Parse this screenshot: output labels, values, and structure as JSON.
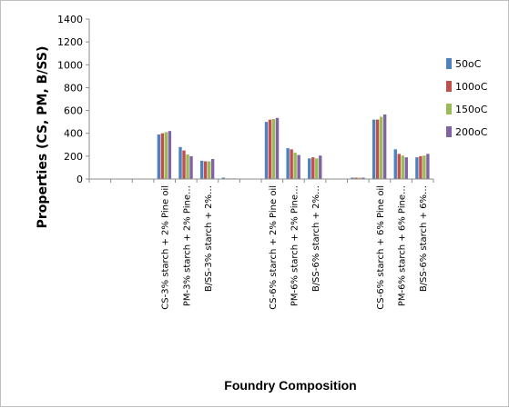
{
  "chart_data": {
    "type": "bar",
    "xlabel": "Foundry Composition",
    "ylabel": "Properties (CS, PM, B/SS)",
    "ylim": [
      0,
      1400
    ],
    "yticks": [
      0,
      200,
      400,
      600,
      800,
      1000,
      1200,
      1400
    ],
    "grid": false,
    "legend_position": "right",
    "categories": [
      "",
      "",
      "",
      "CS-3% starch + 2% Pine oil",
      "PM-3% starch + 2% Pine…",
      "B/SS-3% starch + 2%…",
      "",
      "",
      "CS-6% starch + 2% Pine oil",
      "PM-6% starch + 2% Pine…",
      "B/SS-6% starch + 2%…",
      "",
      "",
      "CS-6% starch + 6% Pine oil",
      "PM-6% starch + 6% Pine…",
      "B/SS-6% starch + 6%…"
    ],
    "series": [
      {
        "name": "50oC",
        "color": "#4f81bd",
        "values": [
          0,
          0,
          2,
          390,
          280,
          160,
          12,
          2,
          500,
          270,
          180,
          4,
          12,
          520,
          260,
          190
        ]
      },
      {
        "name": "100oC",
        "color": "#c0504d",
        "values": [
          0,
          0,
          2,
          400,
          250,
          155,
          5,
          2,
          520,
          260,
          190,
          4,
          12,
          520,
          220,
          200
        ]
      },
      {
        "name": "150oC",
        "color": "#9bbb59",
        "values": [
          0,
          0,
          2,
          410,
          215,
          155,
          5,
          2,
          525,
          230,
          180,
          4,
          12,
          545,
          205,
          205
        ]
      },
      {
        "name": "200oC",
        "color": "#8064a2",
        "values": [
          0,
          0,
          2,
          420,
          200,
          175,
          5,
          2,
          535,
          210,
          205,
          4,
          12,
          565,
          190,
          220
        ]
      }
    ]
  }
}
